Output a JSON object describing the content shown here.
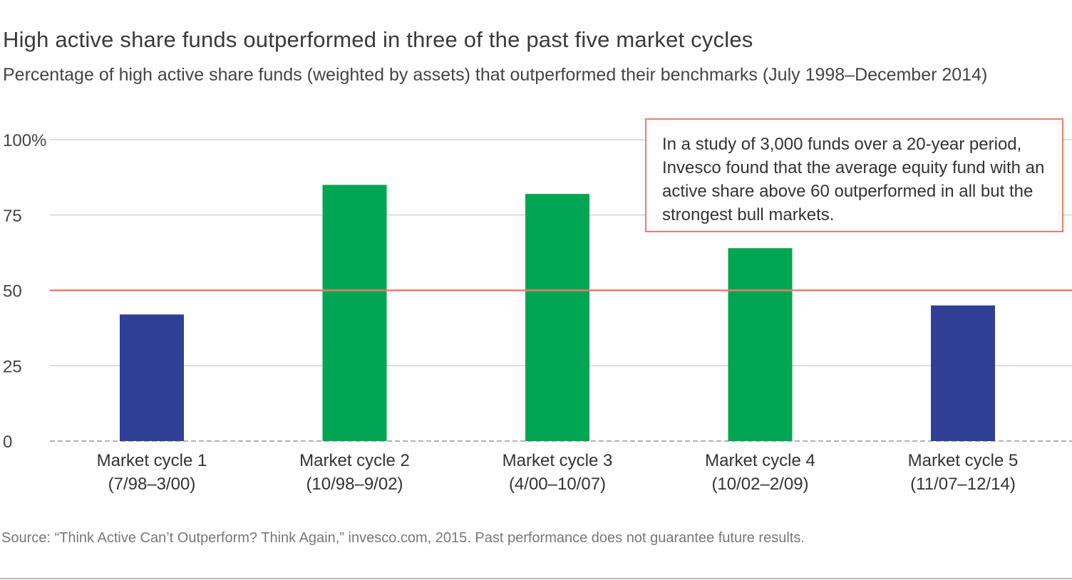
{
  "title": "High active share funds outperformed in three of the past five market cycles",
  "subtitle": "Percentage of high active share funds (weighted by assets) that outperformed their benchmarks (July 1998–December 2014)",
  "callout": "In a study of 3,000 funds over a 20-year period, Invesco found that the average equity fund  with an active share above 60 outperformed in all but the strongest bull markets.",
  "source": "Source: “Think Active Can’t Outperform? Think Again,” invesco.com, 2015. Past performance does not guarantee future results.",
  "colors": {
    "below": "#2e3f95",
    "above": "#00a651",
    "reference": "#f07a6e",
    "grid": "#bdbdbd"
  },
  "chart_data": {
    "type": "bar",
    "categories": [
      [
        "Market cycle 1",
        "(7/98–3/00)"
      ],
      [
        "Market cycle 2",
        "(10/98–9/02)"
      ],
      [
        "Market cycle 3",
        "(4/00–10/07)"
      ],
      [
        "Market cycle 4",
        "(10/02–2/09)"
      ],
      [
        "Market cycle 5",
        "(11/07–12/14)"
      ]
    ],
    "values": [
      42,
      85,
      82,
      64,
      45
    ],
    "reference_line": 50,
    "ylim": [
      0,
      100
    ],
    "yticks": [
      {
        "value": 100,
        "label": "100%"
      },
      {
        "value": 75,
        "label": "75"
      },
      {
        "value": 50,
        "label": "50"
      },
      {
        "value": 25,
        "label": "25"
      },
      {
        "value": 0,
        "label": "0"
      }
    ],
    "grid": true,
    "xlabel": "",
    "ylabel": ""
  }
}
